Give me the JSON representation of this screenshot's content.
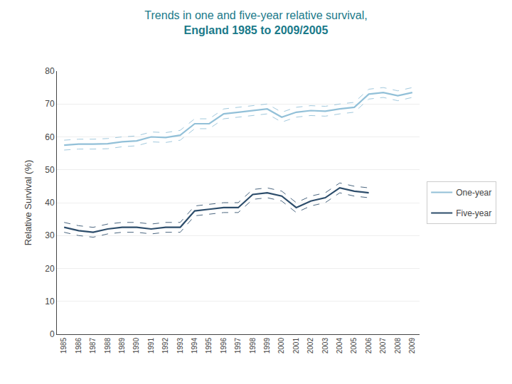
{
  "chart_data": {
    "type": "line",
    "title": "Trends in one and five-year relative survival,",
    "subtitle": "England 1985 to 2009/2005",
    "y_label": "Relative Survival (%)",
    "x": [
      1985,
      1986,
      1987,
      1988,
      1989,
      1990,
      1991,
      1992,
      1993,
      1994,
      1995,
      1996,
      1997,
      1998,
      1999,
      2000,
      2001,
      2002,
      2003,
      2004,
      2005,
      2006,
      2007,
      2008,
      2009
    ],
    "series": [
      {
        "name": "One-year",
        "color": "#92c0d8",
        "values": [
          57.5,
          57.8,
          57.8,
          57.9,
          58.5,
          58.8,
          60.0,
          59.8,
          60.5,
          64.0,
          64.0,
          67.0,
          67.5,
          68.0,
          68.5,
          66.0,
          67.5,
          68.0,
          67.8,
          68.5,
          69.0,
          73.0,
          73.5,
          72.5,
          73.5
        ],
        "upper": [
          59.0,
          59.3,
          59.3,
          59.5,
          60.0,
          60.3,
          61.5,
          61.3,
          62.0,
          65.5,
          65.5,
          68.5,
          69.0,
          69.5,
          70.0,
          67.5,
          69.0,
          69.5,
          69.3,
          70.0,
          70.5,
          74.5,
          75.0,
          74.0,
          75.0
        ],
        "lower": [
          56.0,
          56.3,
          56.3,
          56.4,
          57.0,
          57.3,
          58.5,
          58.3,
          59.0,
          62.5,
          62.5,
          65.5,
          66.0,
          66.5,
          67.0,
          64.5,
          66.0,
          66.5,
          66.3,
          67.0,
          67.5,
          71.5,
          72.0,
          71.0,
          72.0
        ]
      },
      {
        "name": "Five-year",
        "color": "#2d4d6b",
        "values": [
          32.5,
          31.5,
          31.0,
          32.0,
          32.5,
          32.5,
          32.0,
          32.5,
          32.5,
          37.5,
          38.0,
          38.5,
          38.5,
          42.5,
          43.0,
          42.0,
          38.5,
          40.5,
          41.5,
          44.5,
          43.5,
          43.0,
          null,
          null,
          null
        ],
        "upper": [
          34.0,
          33.0,
          32.5,
          33.5,
          34.0,
          34.0,
          33.5,
          34.0,
          34.0,
          39.0,
          39.5,
          40.0,
          40.0,
          44.0,
          44.5,
          43.5,
          40.0,
          42.0,
          43.0,
          46.0,
          45.0,
          44.5,
          null,
          null,
          null
        ],
        "lower": [
          31.0,
          30.0,
          29.5,
          30.5,
          31.0,
          31.0,
          30.5,
          31.0,
          31.0,
          36.0,
          36.5,
          37.0,
          37.0,
          41.0,
          41.5,
          40.5,
          37.0,
          39.0,
          40.0,
          43.0,
          42.0,
          41.5,
          null,
          null,
          null
        ]
      }
    ],
    "xlim": [
      1984.5,
      2009.5
    ],
    "xticks": [
      1985,
      1986,
      1987,
      1988,
      1989,
      1990,
      1991,
      1992,
      1993,
      1994,
      1995,
      1996,
      1997,
      1998,
      1999,
      2000,
      2001,
      2002,
      2003,
      2004,
      2005,
      2006,
      2007,
      2008,
      2009
    ],
    "ylim": [
      0,
      80
    ],
    "yticks": [
      0,
      10,
      20,
      30,
      40,
      50,
      60,
      70,
      80
    ],
    "grid": true,
    "legend": "right"
  }
}
